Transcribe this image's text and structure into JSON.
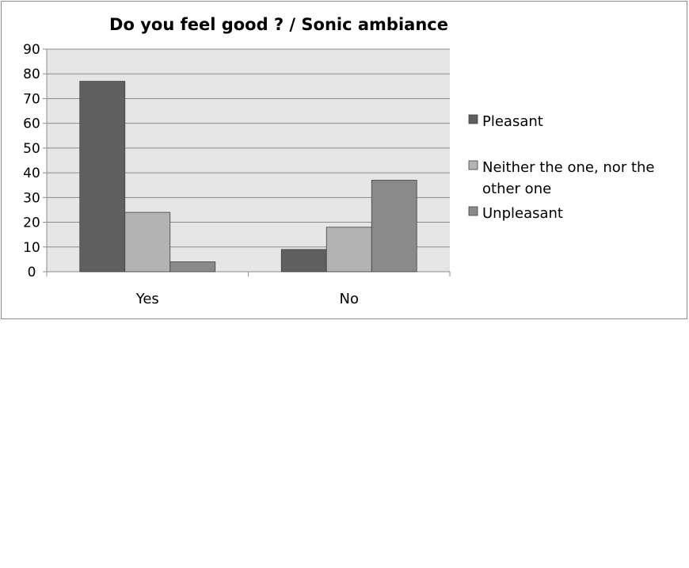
{
  "chart_data": {
    "type": "bar",
    "title": "Do you feel good ? / Sonic ambiance",
    "xlabel": "",
    "ylabel": "",
    "categories": [
      "Yes",
      "No"
    ],
    "ylim": [
      0,
      90
    ],
    "yticks": [
      0,
      10,
      20,
      30,
      40,
      50,
      60,
      70,
      80,
      90
    ],
    "grid": true,
    "legend_position": "right",
    "series": [
      {
        "name": "Pleasant",
        "legend_lines": [
          "Pleasant"
        ],
        "values": [
          77,
          9
        ],
        "color": "#5f5f5f"
      },
      {
        "name": "Neither the one, nor the other one",
        "legend_lines": [
          "Neither the one, nor the",
          "other one"
        ],
        "values": [
          24,
          18
        ],
        "color": "#b3b3b3"
      },
      {
        "name": "Unpleasant",
        "legend_lines": [
          "Unpleasant"
        ],
        "values": [
          4,
          37
        ],
        "color": "#8a8a8a"
      }
    ]
  }
}
